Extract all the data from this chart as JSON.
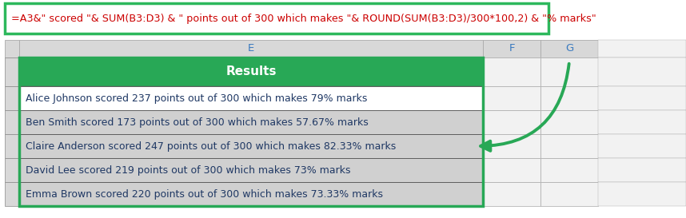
{
  "formula_text": "=A3&\" scored \"& SUM(B3:D3) & \" points out of 300 which makes \"& ROUND(SUM(B3:D3)/300*100,2) & \"% marks\"",
  "formula_bg": "#ffffff",
  "formula_border": "#2db85c",
  "col_header_E": "E",
  "col_header_F": "F",
  "col_header_G": "G",
  "col_header_bg": "#d8d8d8",
  "col_header_text_color": "#3a7abf",
  "header_row_text": "Results",
  "header_row_bg": "#28a856",
  "header_row_text_color": "#ffffff",
  "rows": [
    {
      "text": "Alice Johnson scored 237 points out of 300 which makes 79% marks",
      "bg": "#ffffff"
    },
    {
      "text": "Ben Smith scored 173 points out of 300 which makes 57.67% marks",
      "bg": "#d0d0d0"
    },
    {
      "text": "Claire Anderson scored 247 points out of 300 which makes 82.33% marks",
      "bg": "#d0d0d0"
    },
    {
      "text": "David Lee scored 219 points out of 300 which makes 73% marks",
      "bg": "#d0d0d0"
    },
    {
      "text": "Emma Brown scored 220 points out of 300 which makes 73.33% marks",
      "bg": "#d0d0d0"
    }
  ],
  "row_bgs_alt": [
    "#ffffff",
    "#d0d0d0",
    "#d0d0d0",
    "#d0d0d0",
    "#d0d0d0"
  ],
  "text_color": "#1f3864",
  "arrow_color": "#28a856",
  "border_color": "#28a856",
  "fig_bg": "#ffffff",
  "fig_width": 8.58,
  "fig_height": 2.73
}
